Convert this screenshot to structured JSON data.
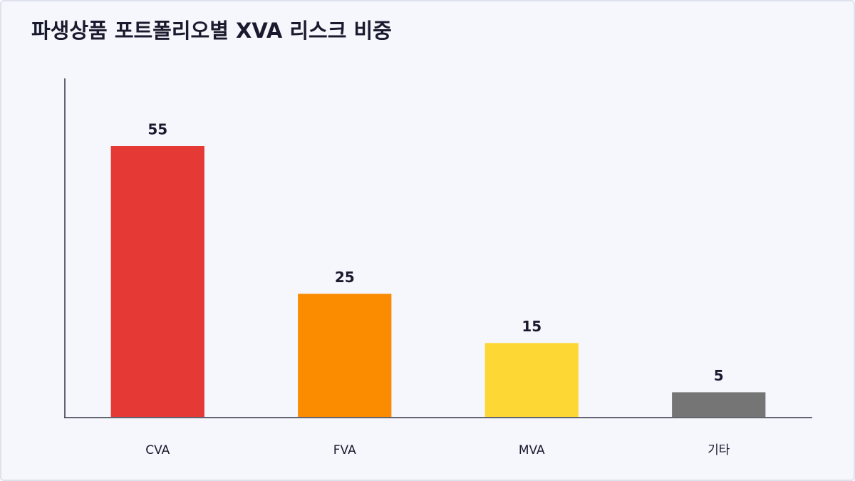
{
  "chart_data": {
    "type": "bar",
    "title": "파생상품 포트폴리오별 XVA 리스크 비중",
    "categories": [
      "CVA",
      "FVA",
      "MVA",
      "기타"
    ],
    "values": [
      55,
      25,
      15,
      5
    ],
    "colors": [
      "#e53935",
      "#fb8c00",
      "#fdd835",
      "#757575"
    ],
    "ylim": [
      0,
      68.75
    ]
  }
}
